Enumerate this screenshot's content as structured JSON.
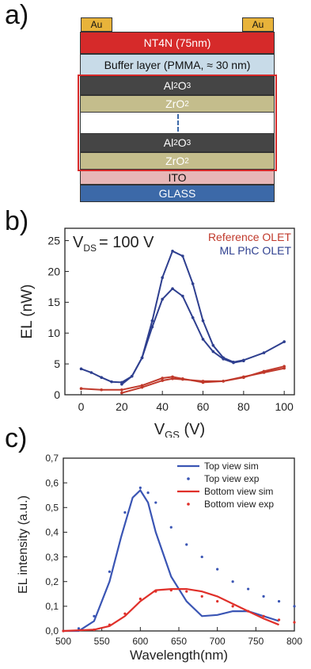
{
  "panels": {
    "a": "a)",
    "b": "b)",
    "c": "c)"
  },
  "stack": {
    "electrode_left": "Au",
    "electrode_right": "Au",
    "layers": [
      {
        "text": "NT4N (75nm)",
        "fill": "#d62a2a",
        "color": "#ffffff"
      },
      {
        "text": "Buffer layer (PMMA, ≈ 30 nm)",
        "fill": "#c8dbe8",
        "color": "#111111"
      },
      {
        "text": "Al",
        "sub": "2",
        "rest": "O",
        "sub2": "3",
        "fill": "#454545",
        "color": "#ffffff"
      },
      {
        "text": "ZrO",
        "sub": "2",
        "fill": "#c4bd8c",
        "color": "#ffffff"
      },
      {
        "text": "Al",
        "sub": "2",
        "rest": "O",
        "sub2": "3",
        "fill": "#454545",
        "color": "#ffffff"
      },
      {
        "text": "ZrO",
        "sub": "2",
        "fill": "#c4bd8c",
        "color": "#ffffff"
      },
      {
        "text": "ITO",
        "fill": "#e7b7b7",
        "color": "#111111"
      },
      {
        "text": "GLASS",
        "fill": "#3c69a8",
        "color": "#ffffff"
      }
    ],
    "colors": {
      "gold": "#e8b33a",
      "frame": "#d62a2a"
    }
  },
  "chart_data": [
    {
      "type": "line",
      "annotation": "V",
      "annotation_sub": "DS",
      "annotation_rest": "= 100 V",
      "xlabel": "V",
      "xlabel_sub": "GS",
      "xlabel_rest": " (V)",
      "ylabel": "EL (nW)",
      "xlim": [
        -8,
        105
      ],
      "ylim": [
        0,
        27
      ],
      "xticks": [
        0,
        20,
        40,
        60,
        80,
        100
      ],
      "yticks": [
        0,
        5,
        10,
        15,
        20,
        25
      ],
      "legend": "top-right",
      "series": [
        {
          "name": "Reference OLET",
          "color": "#c0392b",
          "x": [
            0,
            10,
            20,
            30,
            40,
            45,
            50,
            60,
            70,
            80,
            90,
            100
          ],
          "y": [
            1.0,
            0.8,
            0.8,
            1.5,
            2.7,
            2.9,
            2.6,
            2.0,
            2.2,
            2.8,
            3.8,
            4.6
          ]
        },
        {
          "name": "",
          "color": "#c0392b",
          "x": [
            20,
            30,
            40,
            45,
            50,
            60,
            70,
            80,
            90,
            100
          ],
          "y": [
            0.3,
            1.2,
            2.3,
            2.6,
            2.5,
            2.2,
            2.2,
            2.9,
            3.6,
            4.3
          ]
        },
        {
          "name": "ML PhC OLET",
          "color": "#2e3f8f",
          "x": [
            0,
            5,
            10,
            15,
            20,
            25,
            30,
            35,
            40,
            45,
            50,
            55,
            60,
            65,
            70,
            75,
            80,
            90,
            100
          ],
          "y": [
            4.2,
            3.6,
            2.8,
            2.1,
            2.0,
            3.0,
            6.0,
            12.0,
            19.0,
            23.3,
            22.5,
            18.0,
            12.0,
            8.0,
            6.0,
            5.3,
            5.6,
            6.8,
            8.6
          ]
        },
        {
          "name": "",
          "color": "#2e3f8f",
          "x": [
            20,
            25,
            30,
            35,
            40,
            45,
            50,
            55,
            60,
            65,
            70,
            75,
            80
          ],
          "y": [
            1.7,
            3.0,
            6.0,
            11.0,
            15.5,
            17.2,
            16.0,
            12.5,
            9.0,
            7.0,
            5.8,
            5.2,
            5.5
          ]
        }
      ]
    },
    {
      "type": "line",
      "xlabel": "Wavelength(nm)",
      "ylabel": "EL intensity (a.u.)",
      "xlim": [
        500,
        800
      ],
      "ylim": [
        0,
        0.7
      ],
      "xticks": [
        500,
        550,
        600,
        650,
        700,
        750,
        800
      ],
      "yticks": [
        0,
        0.1,
        0.2,
        0.3,
        0.4,
        0.5,
        0.6,
        0.7
      ],
      "ytick_labels": [
        "0,0",
        "0,1",
        "0,2",
        "0,3",
        "0,4",
        "0,5",
        "0,6",
        "0,7"
      ],
      "legend": "top-right",
      "series": [
        {
          "name": "Top view sim",
          "color": "#3a55b4",
          "style": "line",
          "x": [
            500,
            520,
            540,
            560,
            575,
            590,
            600,
            610,
            620,
            640,
            660,
            680,
            700,
            720,
            740,
            760,
            780
          ],
          "y": [
            0.0,
            0.0,
            0.04,
            0.2,
            0.38,
            0.54,
            0.57,
            0.52,
            0.4,
            0.22,
            0.12,
            0.06,
            0.065,
            0.08,
            0.08,
            0.06,
            0.04
          ]
        },
        {
          "name": "Top view exp",
          "color": "#3a55b4",
          "style": "dots",
          "x": [
            500,
            520,
            540,
            560,
            580,
            600,
            610,
            620,
            640,
            660,
            680,
            700,
            720,
            740,
            760,
            780,
            800
          ],
          "y": [
            0.0,
            0.01,
            0.06,
            0.24,
            0.48,
            0.58,
            0.56,
            0.52,
            0.42,
            0.35,
            0.3,
            0.25,
            0.2,
            0.17,
            0.14,
            0.12,
            0.1
          ]
        },
        {
          "name": "Bottom view sim",
          "color": "#e0302a",
          "style": "line",
          "x": [
            500,
            540,
            560,
            580,
            600,
            620,
            640,
            660,
            680,
            700,
            720,
            740,
            760,
            780
          ],
          "y": [
            0.0,
            0.005,
            0.02,
            0.06,
            0.12,
            0.165,
            0.17,
            0.17,
            0.16,
            0.14,
            0.11,
            0.08,
            0.05,
            0.025
          ]
        },
        {
          "name": "Bottom view exp",
          "color": "#e0302a",
          "style": "dots",
          "x": [
            500,
            540,
            560,
            580,
            600,
            620,
            640,
            660,
            680,
            700,
            720,
            740,
            760,
            780,
            800
          ],
          "y": [
            0.0,
            0.005,
            0.025,
            0.07,
            0.13,
            0.16,
            0.165,
            0.16,
            0.14,
            0.12,
            0.1,
            0.08,
            0.06,
            0.045,
            0.035
          ]
        }
      ]
    }
  ]
}
